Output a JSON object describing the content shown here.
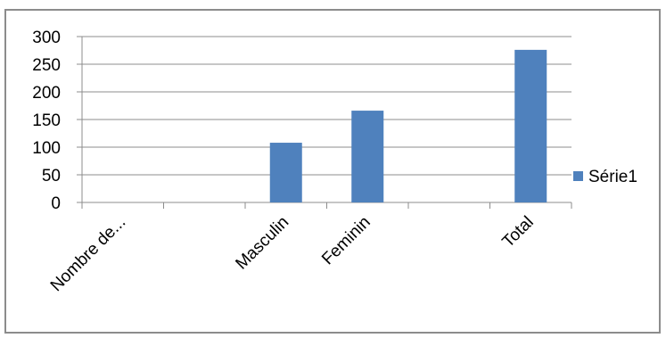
{
  "chart_data": {
    "type": "bar",
    "categories": [
      "Nombre de...",
      "",
      "Masculin",
      "Feminin",
      "",
      "Total"
    ],
    "series": [
      {
        "name": "Série1",
        "values": [
          0,
          0,
          108,
          166,
          0,
          276
        ],
        "color": "#4f81bd"
      }
    ],
    "ylim": [
      0,
      300
    ],
    "yticks": [
      0,
      50,
      100,
      150,
      200,
      250,
      300
    ],
    "grid": true,
    "legend": "right",
    "title": "",
    "xlabel": "",
    "ylabel": ""
  }
}
